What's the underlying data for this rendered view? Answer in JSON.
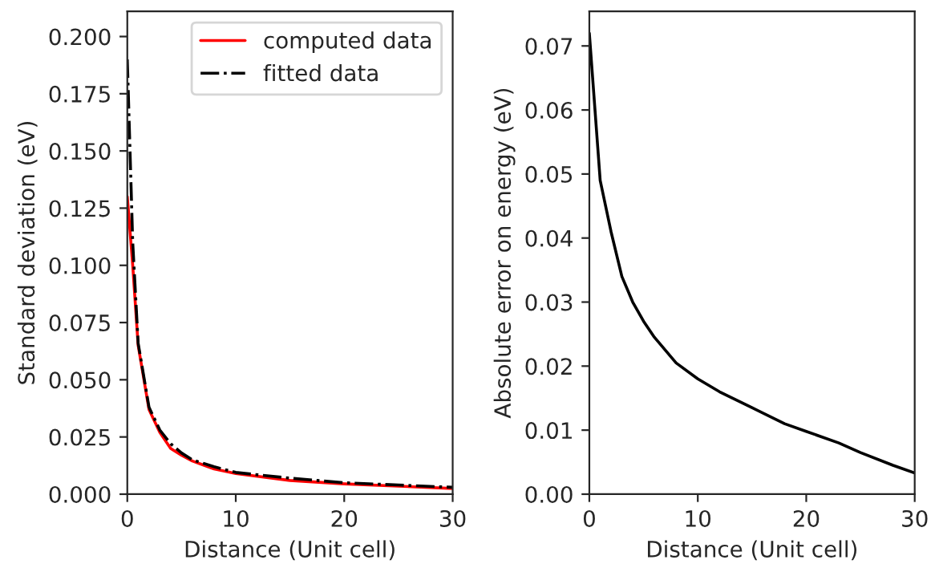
{
  "chart_data": [
    {
      "type": "line",
      "xlabel": "Distance (Unit cell)",
      "ylabel": "Standard deviation (eV)",
      "xlim": [
        0,
        30
      ],
      "xticks": [
        0,
        10,
        20,
        30
      ],
      "ylim": [
        0,
        0.211
      ],
      "yticks": [
        {
          "value": 0,
          "label": "0.000"
        },
        {
          "value": 0.025,
          "label": "0.025"
        },
        {
          "value": 0.05,
          "label": "0.050"
        },
        {
          "value": 0.075,
          "label": "0.075"
        },
        {
          "value": 0.1,
          "label": "0.100"
        },
        {
          "value": 0.125,
          "label": "0.125"
        },
        {
          "value": 0.15,
          "label": "0.150"
        },
        {
          "value": 0.175,
          "label": "0.175"
        },
        {
          "value": 0.2,
          "label": "0.200"
        }
      ],
      "legend": "top right",
      "grid": false,
      "series": [
        {
          "name": "computed data",
          "color": "#ff0000",
          "line_style": "solid",
          "x": [
            0,
            0.5,
            1,
            2,
            3,
            4,
            5,
            6,
            8,
            10,
            15,
            20,
            25,
            30
          ],
          "values": [
            0.13,
            0.1,
            0.065,
            0.037,
            0.027,
            0.02,
            0.017,
            0.0145,
            0.011,
            0.009,
            0.006,
            0.0045,
            0.0035,
            0.0025
          ]
        },
        {
          "name": "fitted data",
          "color": "#000000",
          "line_style": "dashdot",
          "x": [
            0,
            0.25,
            0.5,
            1,
            2,
            3,
            4,
            5,
            6,
            8,
            10,
            15,
            20,
            25,
            30
          ],
          "values": [
            0.19,
            0.15,
            0.11,
            0.066,
            0.038,
            0.028,
            0.022,
            0.018,
            0.015,
            0.012,
            0.0095,
            0.007,
            0.005,
            0.004,
            0.003
          ]
        }
      ]
    },
    {
      "type": "line",
      "xlabel": "Distance (Unit cell)",
      "ylabel": "Absolute error on energy (eV)",
      "xlim": [
        0,
        30
      ],
      "xticks": [
        0,
        10,
        20,
        30
      ],
      "ylim": [
        0,
        0.0754
      ],
      "yticks": [
        {
          "value": 0,
          "label": "0.00"
        },
        {
          "value": 0.01,
          "label": "0.01"
        },
        {
          "value": 0.02,
          "label": "0.02"
        },
        {
          "value": 0.03,
          "label": "0.03"
        },
        {
          "value": 0.04,
          "label": "0.04"
        },
        {
          "value": 0.05,
          "label": "0.05"
        },
        {
          "value": 0.06,
          "label": "0.06"
        },
        {
          "value": 0.07,
          "label": "0.07"
        }
      ],
      "grid": false,
      "series": [
        {
          "color": "#000000",
          "line_style": "solid",
          "x": [
            0,
            1,
            2,
            3,
            4,
            5,
            6,
            8,
            10,
            12,
            15,
            18,
            20,
            23,
            25,
            28,
            30
          ],
          "values": [
            0.072,
            0.049,
            0.041,
            0.034,
            0.03,
            0.027,
            0.0245,
            0.0205,
            0.018,
            0.016,
            0.0135,
            0.011,
            0.0098,
            0.008,
            0.0065,
            0.0045,
            0.0033
          ]
        }
      ]
    }
  ]
}
